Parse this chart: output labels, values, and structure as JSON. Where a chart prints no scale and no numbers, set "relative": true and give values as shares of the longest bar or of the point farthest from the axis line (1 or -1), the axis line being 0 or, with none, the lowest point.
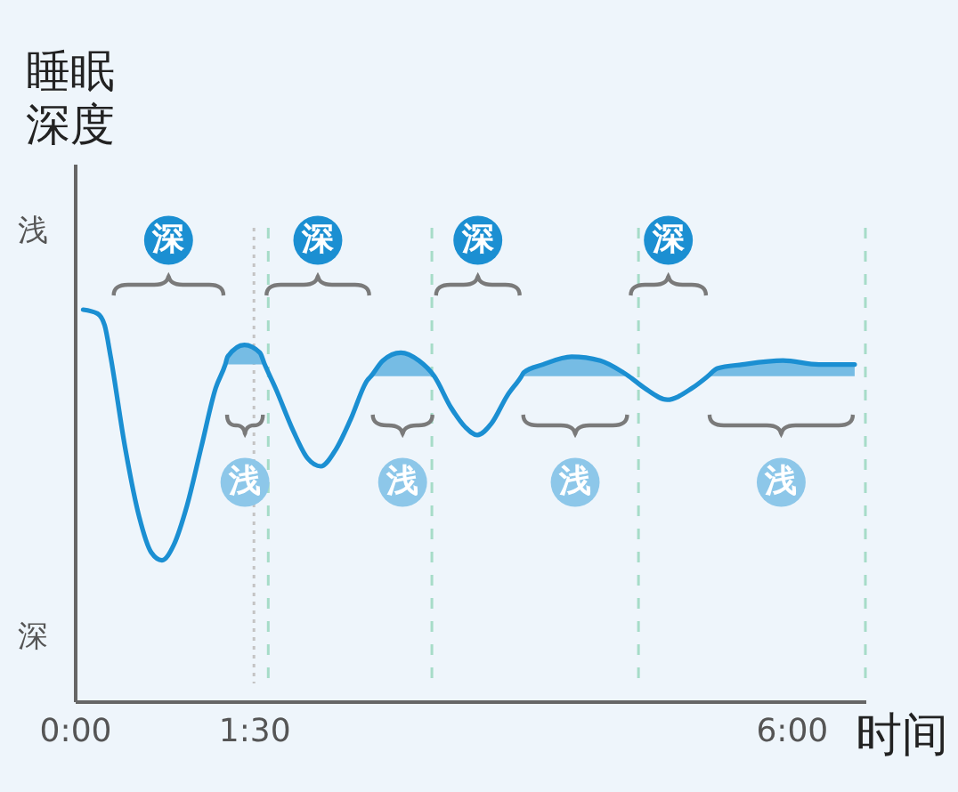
{
  "chart_data": {
    "type": "line",
    "relative": true,
    "xlabel": "时间",
    "ylabel": "睡眠深度",
    "xlim": [
      0,
      6.62
    ],
    "xticks": [
      {
        "value": 0,
        "label": "0:00"
      },
      {
        "value": 1.5,
        "label": "1:30"
      },
      {
        "value": 6,
        "label": "6:00"
      }
    ],
    "series": [
      {
        "type": "line",
        "color": "#1b8fd2",
        "x": [
          0.07,
          0.19,
          0.25,
          0.3,
          0.42,
          0.54,
          0.64,
          0.73,
          0.83,
          0.94,
          1.06,
          1.18,
          1.26,
          1.28,
          1.42,
          1.55,
          1.59,
          1.68,
          1.83,
          1.95,
          2.06,
          2.18,
          2.31,
          2.45,
          2.48,
          2.58,
          2.73,
          2.88,
          3.01,
          3.15,
          3.27,
          3.37,
          3.49,
          3.62,
          3.74,
          3.76,
          3.92,
          4.16,
          4.4,
          4.59,
          4.64,
          4.77,
          4.96,
          5.17,
          5.3,
          5.38,
          5.59,
          5.93,
          6.23,
          6.53
        ],
        "values": [
          1.0,
          0.99,
          0.96,
          0.88,
          0.65,
          0.47,
          0.38,
          0.36,
          0.4,
          0.5,
          0.65,
          0.8,
          0.86,
          0.88,
          0.91,
          0.89,
          0.86,
          0.8,
          0.69,
          0.62,
          0.6,
          0.64,
          0.72,
          0.82,
          0.83,
          0.87,
          0.89,
          0.87,
          0.83,
          0.75,
          0.7,
          0.68,
          0.71,
          0.78,
          0.83,
          0.84,
          0.86,
          0.88,
          0.87,
          0.84,
          0.83,
          0.8,
          0.77,
          0.8,
          0.83,
          0.85,
          0.86,
          0.87,
          0.86,
          0.86
        ],
        "lower": [
          null,
          null,
          null,
          null,
          null,
          null,
          null,
          null,
          null,
          null,
          null,
          null,
          0.86,
          0.86,
          0.86,
          0.86,
          0.86,
          null,
          null,
          null,
          null,
          null,
          null,
          null,
          0.83,
          0.83,
          0.83,
          0.83,
          0.83,
          null,
          null,
          null,
          null,
          null,
          0.83,
          0.83,
          0.83,
          0.83,
          0.83,
          0.83,
          0.83,
          null,
          null,
          null,
          0.83,
          0.83,
          0.83,
          0.83,
          0.83,
          0.83
        ],
        "upper": [
          null,
          null,
          null,
          null,
          null,
          null,
          null,
          null,
          null,
          null,
          null,
          null,
          0.86,
          0.88,
          0.91,
          0.89,
          0.86,
          null,
          null,
          null,
          null,
          null,
          null,
          null,
          0.83,
          0.87,
          0.89,
          0.87,
          0.83,
          null,
          null,
          null,
          null,
          null,
          0.83,
          0.84,
          0.86,
          0.88,
          0.87,
          0.84,
          0.83,
          null,
          null,
          null,
          0.83,
          0.85,
          0.86,
          0.87,
          0.86,
          0.86
        ]
      }
    ],
    "annotations": [
      "浅",
      "深",
      "深",
      "浅",
      "深",
      "浅",
      "深",
      "浅",
      "深",
      "浅"
    ],
    "ref_lines": [
      {
        "axis": "x",
        "value": 1.5,
        "color": "#c4c4c4",
        "line_style": "dotted"
      },
      {
        "axis": "x",
        "value": 1.62,
        "color": "#a6dcc8",
        "line_style": "dashed"
      },
      {
        "axis": "x",
        "value": 2.99,
        "color": "#a6dcc8",
        "line_style": "dashed"
      },
      {
        "axis": "x",
        "value": 4.72,
        "color": "#a6dcc8",
        "line_style": "dashed"
      },
      {
        "axis": "x",
        "value": 6.62,
        "color": "#a6dcc8",
        "line_style": "dashed"
      }
    ]
  }
}
